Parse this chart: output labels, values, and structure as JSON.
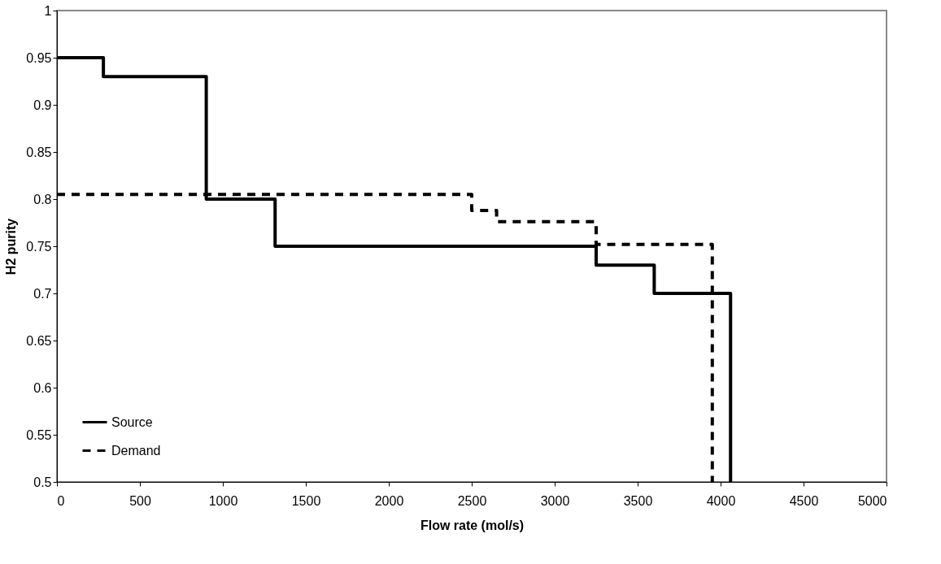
{
  "chart_data": {
    "type": "step",
    "xlabel": "Flow rate (mol/s)",
    "ylabel": "H2 purity",
    "xlim": [
      0,
      5000
    ],
    "xticks": [
      0,
      500,
      1000,
      1500,
      2000,
      2500,
      3000,
      3500,
      4000,
      4500,
      5000
    ],
    "ylim": [
      0.5,
      1
    ],
    "yticks": [
      0.5,
      0.55,
      0.6,
      0.65,
      0.7,
      0.75,
      0.8,
      0.85,
      0.9,
      0.95,
      1
    ],
    "grid": false,
    "legend": "bottom left",
    "series": [
      {
        "name": "Source",
        "color": "#000000",
        "line_style": "solid",
        "x": [
          0,
          280,
          900,
          1315,
          3250,
          3600,
          4060,
          4060
        ],
        "values": [
          0.95,
          0.93,
          0.8,
          0.75,
          0.73,
          0.7,
          0.7,
          0.5
        ]
      },
      {
        "name": "Demand",
        "color": "#000000",
        "line_style": "dashed",
        "x": [
          0,
          2500,
          2650,
          3250,
          3950,
          3950
        ],
        "values": [
          0.805,
          0.788,
          0.776,
          0.752,
          0.752,
          0.5
        ]
      }
    ]
  }
}
